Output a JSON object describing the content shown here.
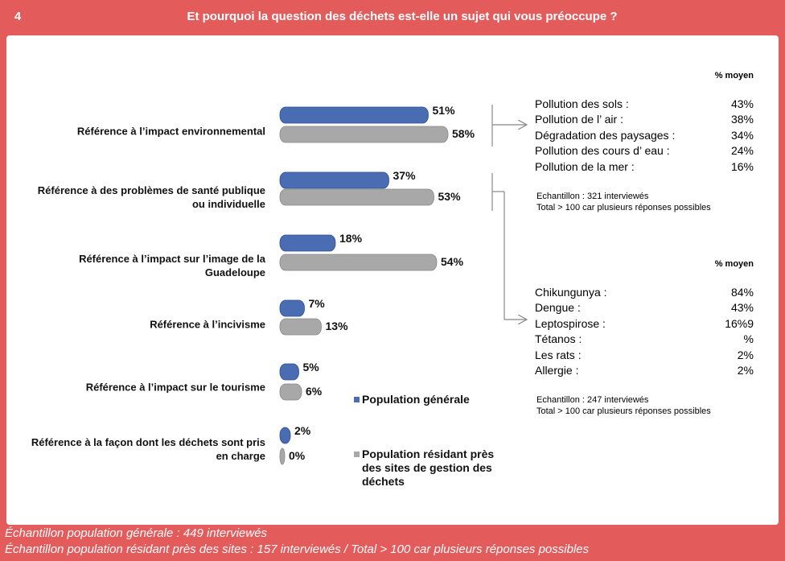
{
  "header": {
    "number": "4",
    "title": "Et pourquoi la question des déchets est-elle un sujet qui vous préoccupe ?"
  },
  "chart_data": {
    "type": "hbar",
    "categories": [
      "Référence à l’impact environnemental",
      "Référence à des problèmes de santé publique ou individuelle",
      "Référence à l’impact sur l’image de la Guadeloupe",
      "Référence à l’incivisme",
      "Référence à l’impact sur le tourisme",
      "Référence à la façon dont les déchets sont pris en charge"
    ],
    "series": [
      {
        "name": "Population générale",
        "color": "#4a6cb3",
        "values": [
          51,
          37,
          18,
          7,
          5,
          2
        ],
        "value_labels": [
          "51%",
          "37%",
          "18%",
          "7%",
          "5%",
          "2%"
        ]
      },
      {
        "name": "Population résidant près des sites de gestion des déchets",
        "color": "#a8a8a8",
        "values": [
          58,
          53,
          54,
          13,
          6,
          0
        ],
        "value_labels": [
          "58%",
          "53%",
          "54%",
          "13%",
          "6%",
          "0%"
        ]
      }
    ]
  },
  "panels": [
    {
      "header": "% moyen",
      "rows": [
        {
          "label": "Pollution des sols :",
          "value": "43%"
        },
        {
          "label": "Pollution de l’ air :",
          "value": "38%"
        },
        {
          "label": "Dégradation des paysages :",
          "value": "34%"
        },
        {
          "label": "Pollution des cours d’ eau :",
          "value": "24%"
        },
        {
          "label": "Pollution de la mer :",
          "value": "16%"
        }
      ],
      "notes": [
        "Echantillon : 321 interviewés",
        "Total > 100 car plusieurs réponses possibles"
      ]
    },
    {
      "header": "% moyen",
      "rows": [
        {
          "label": "Chikungunya :",
          "value": "84%"
        },
        {
          "label": "Dengue :",
          "value": "43%"
        },
        {
          "label": "Leptospirose :",
          "value": "16%9"
        },
        {
          "label": "Tétanos :",
          "value": "%"
        },
        {
          "label": "Les rats :",
          "value": "2%"
        },
        {
          "label": "Allergie :",
          "value": "2%"
        }
      ],
      "notes": [
        "Echantillon : 247 interviewés",
        "Total > 100 car plusieurs réponses possibles"
      ]
    }
  ],
  "footer": [
    "Échantillon population générale : 449 interviewés",
    "Échantillon population résidant près des sites : 157 interviewés / Total > 100 car plusieurs réponses possibles"
  ]
}
